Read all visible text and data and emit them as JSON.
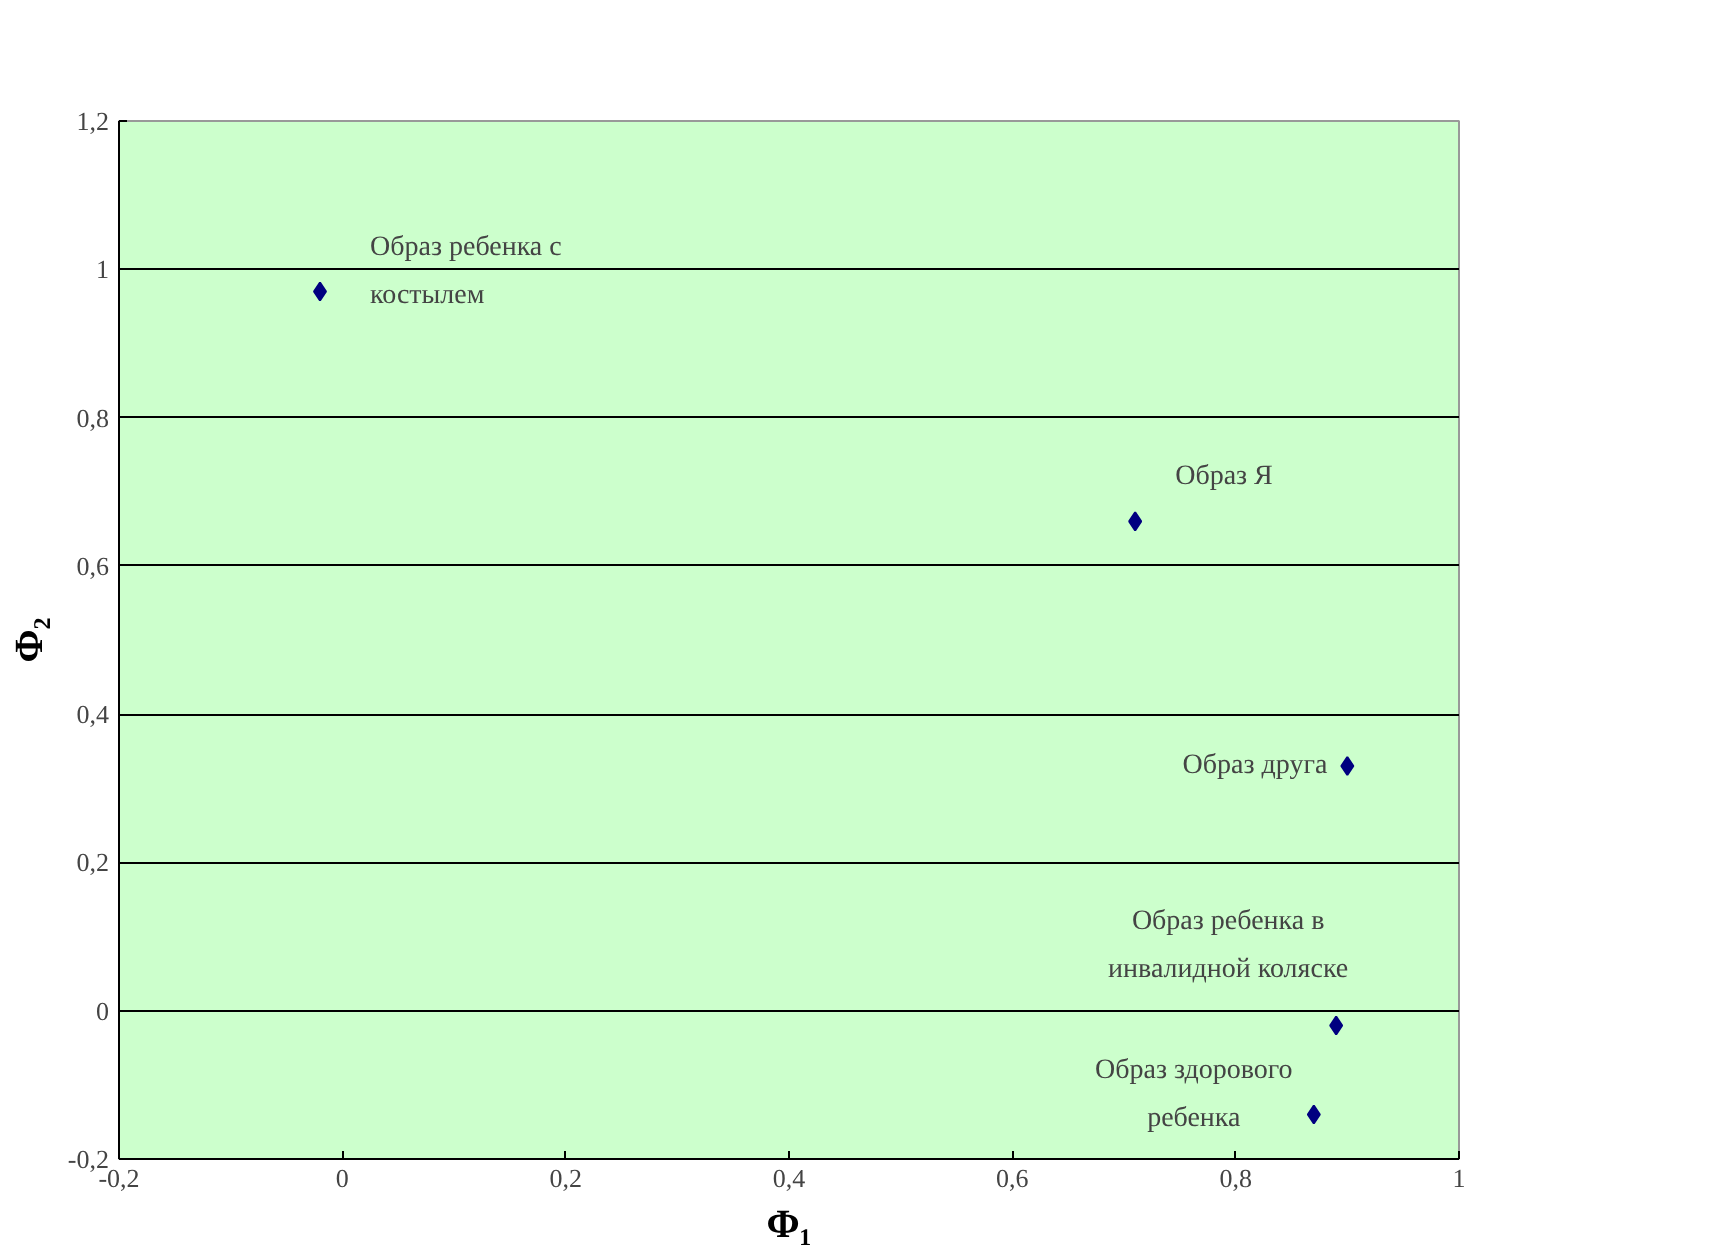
{
  "chart_data": {
    "type": "scatter",
    "xlabel": "Φ₁",
    "ylabel": "Φ₂",
    "x": [
      -0.02,
      0.71,
      0.9,
      0.89,
      0.87
    ],
    "values": [
      0.97,
      0.66,
      0.33,
      -0.02,
      -0.14
    ],
    "color": "#000080",
    "marker": "diamond",
    "grid": "y",
    "xlim": [
      -0.2,
      1.0
    ],
    "ylim": [
      -0.2,
      1.2
    ],
    "xticks": [
      {
        "value": -0.2,
        "label": "-0,2"
      },
      0,
      {
        "value": 0.2,
        "label": "0,2"
      },
      {
        "value": 0.4,
        "label": "0,4"
      },
      {
        "value": 0.6,
        "label": "0,6"
      },
      {
        "value": 0.8,
        "label": "0,8"
      },
      1
    ],
    "yticks": [
      {
        "value": -0.2,
        "label": "-0,2"
      },
      0,
      {
        "value": 0.2,
        "label": "0,2"
      },
      {
        "value": 0.4,
        "label": "0,4"
      },
      {
        "value": 0.6,
        "label": "0,6"
      },
      {
        "value": 0.8,
        "label": "0,8"
      },
      1,
      {
        "value": 1.2,
        "label": "1,2"
      }
    ],
    "annotations": [
      {
        "text": "Образ ребенка с\nкостылем",
        "x": -0.02,
        "y": 0.97
      },
      {
        "text": "Образ Я",
        "x": 0.71,
        "y": 0.66
      },
      {
        "text": "Образ друга",
        "x": 0.9,
        "y": 0.33
      },
      {
        "text": "Образ ребенка в\nинвалидной коляске",
        "x": 0.89,
        "y": -0.02
      },
      {
        "text": "Образ здорового\nребенка",
        "x": 0.87,
        "y": -0.14
      }
    ]
  }
}
